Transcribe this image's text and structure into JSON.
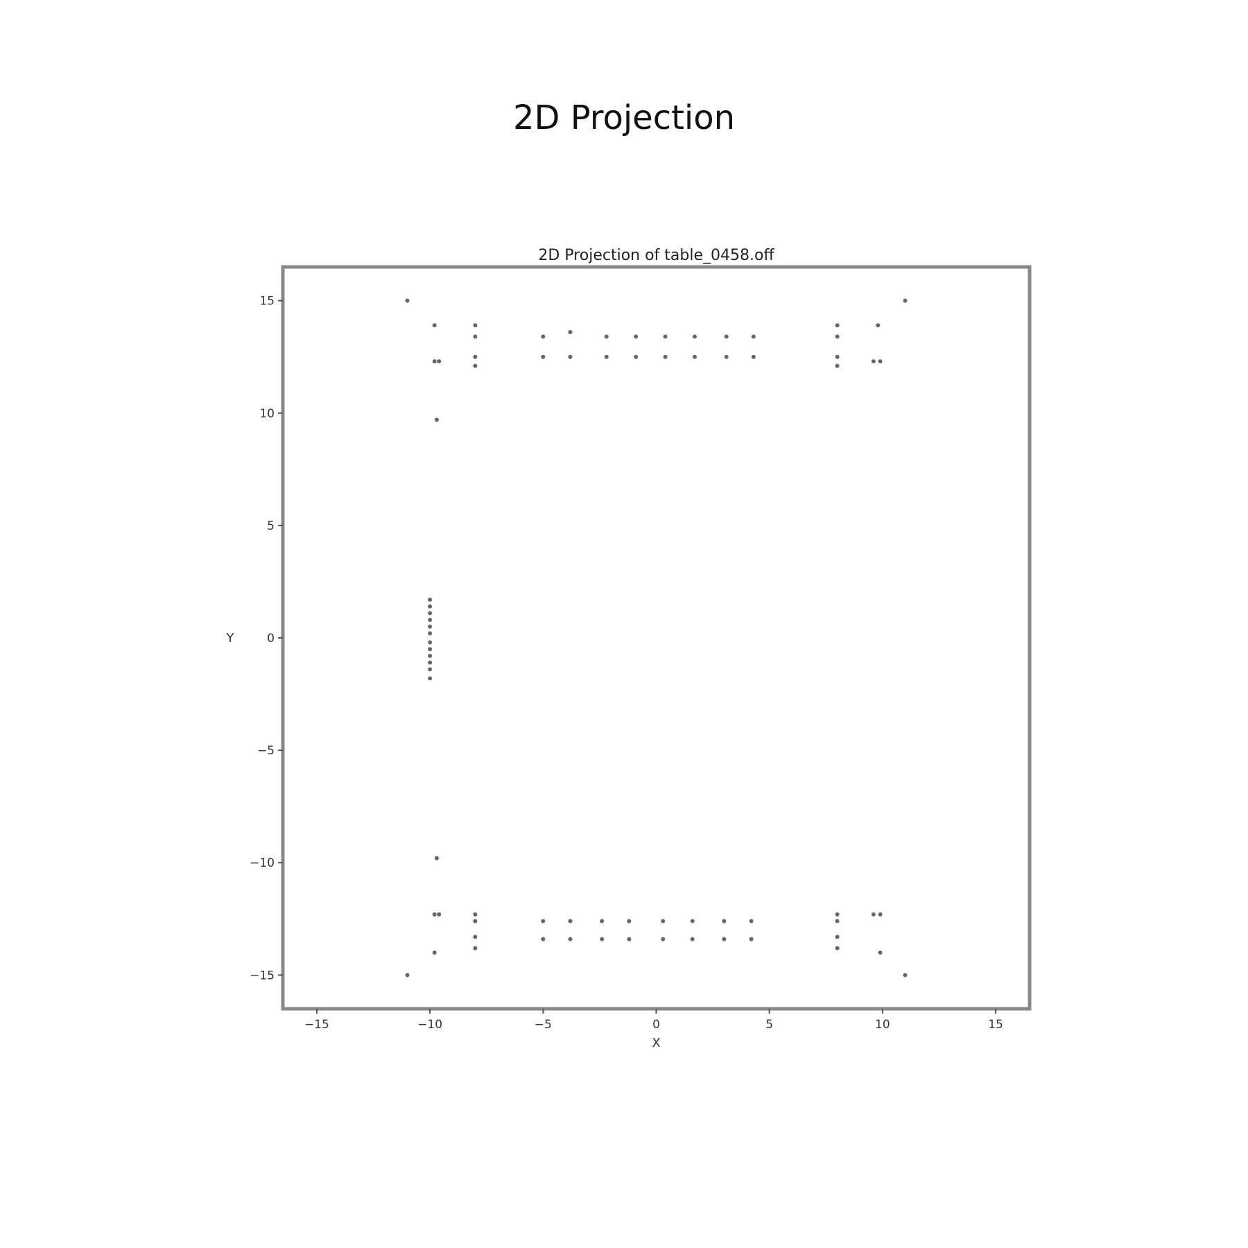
{
  "figure": {
    "title": "2D Projection"
  },
  "chart_data": {
    "type": "scatter",
    "title": "2D Projection of table_0458.off",
    "xlabel": "X",
    "ylabel": "Y",
    "xlim": [
      -16.5,
      16.5
    ],
    "ylim": [
      -16.5,
      16.5
    ],
    "x_ticks": [
      -15,
      -10,
      -5,
      0,
      5,
      10,
      15
    ],
    "y_ticks": [
      -15,
      -10,
      -5,
      0,
      5,
      10,
      15
    ],
    "x_tick_labels": [
      "−15",
      "−10",
      "−5",
      "0",
      "5",
      "10",
      "15"
    ],
    "y_tick_labels": [
      "−15",
      "−10",
      "−5",
      "0",
      "5",
      "10",
      "15"
    ],
    "grid": false,
    "marker_color": "#333333",
    "series": [
      {
        "points": [
          [
            -11,
            15
          ],
          [
            11,
            15
          ],
          [
            -11,
            -15
          ],
          [
            11,
            -15
          ],
          [
            -9.8,
            13.9
          ],
          [
            -8,
            13.9
          ],
          [
            -8,
            13.4
          ],
          [
            8,
            13.9
          ],
          [
            8,
            13.4
          ],
          [
            9.8,
            13.9
          ],
          [
            -9.8,
            12.3
          ],
          [
            -9.6,
            12.3
          ],
          [
            -8,
            12.5
          ],
          [
            -8,
            12.1
          ],
          [
            8,
            12.5
          ],
          [
            8,
            12.1
          ],
          [
            9.6,
            12.3
          ],
          [
            9.9,
            12.3
          ],
          [
            -5,
            13.4
          ],
          [
            -3.8,
            13.6
          ],
          [
            -2.2,
            13.4
          ],
          [
            -0.9,
            13.4
          ],
          [
            0.4,
            13.4
          ],
          [
            1.7,
            13.4
          ],
          [
            3.1,
            13.4
          ],
          [
            4.3,
            13.4
          ],
          [
            -5,
            12.5
          ],
          [
            -3.8,
            12.5
          ],
          [
            -2.2,
            12.5
          ],
          [
            -0.9,
            12.5
          ],
          [
            0.4,
            12.5
          ],
          [
            1.7,
            12.5
          ],
          [
            3.1,
            12.5
          ],
          [
            4.3,
            12.5
          ],
          [
            -9.7,
            9.7
          ],
          [
            -10,
            1.7
          ],
          [
            -10,
            1.4
          ],
          [
            -10,
            1.1
          ],
          [
            -10,
            0.8
          ],
          [
            -10,
            0.5
          ],
          [
            -10,
            0.2
          ],
          [
            -10,
            -0.2
          ],
          [
            -10,
            -0.5
          ],
          [
            -10,
            -0.8
          ],
          [
            -10,
            -1.1
          ],
          [
            -10,
            -1.4
          ],
          [
            -10,
            -1.8
          ],
          [
            -9.7,
            -9.8
          ],
          [
            -9.8,
            -12.3
          ],
          [
            -9.6,
            -12.3
          ],
          [
            -8,
            -12.3
          ],
          [
            -8,
            -12.6
          ],
          [
            8,
            -12.3
          ],
          [
            8,
            -12.6
          ],
          [
            9.6,
            -12.3
          ],
          [
            9.9,
            -12.3
          ],
          [
            -5,
            -12.6
          ],
          [
            -3.8,
            -12.6
          ],
          [
            -2.4,
            -12.6
          ],
          [
            -1.2,
            -12.6
          ],
          [
            0.3,
            -12.6
          ],
          [
            1.6,
            -12.6
          ],
          [
            3,
            -12.6
          ],
          [
            4.2,
            -12.6
          ],
          [
            -5,
            -13.4
          ],
          [
            -3.8,
            -13.4
          ],
          [
            -2.4,
            -13.4
          ],
          [
            -1.2,
            -13.4
          ],
          [
            0.3,
            -13.4
          ],
          [
            1.6,
            -13.4
          ],
          [
            3,
            -13.4
          ],
          [
            4.2,
            -13.4
          ],
          [
            -8,
            -13.3
          ],
          [
            -8,
            -13.8
          ],
          [
            8,
            -13.3
          ],
          [
            8,
            -13.8
          ],
          [
            -9.8,
            -14
          ],
          [
            9.9,
            -14
          ]
        ]
      }
    ]
  }
}
